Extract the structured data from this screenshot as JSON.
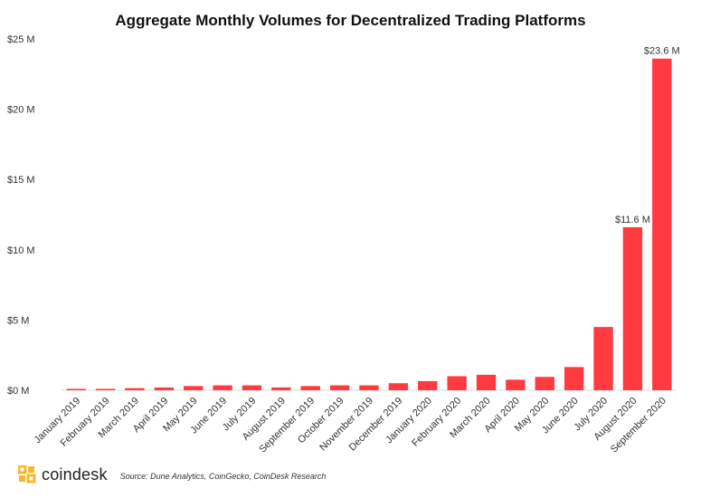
{
  "chart_data": {
    "type": "bar",
    "title": "Aggregate Monthly Volumes for Decentralized Trading Platforms",
    "xlabel": "",
    "ylabel": "",
    "ylim": [
      0,
      25
    ],
    "yticks": [
      0,
      5,
      10,
      15,
      20,
      25
    ],
    "ytick_labels": [
      "$0 M",
      "$5 M",
      "$10 M",
      "$15 M",
      "$20 M",
      "$25 M"
    ],
    "grid": false,
    "bar_color": "#ff3b3f",
    "categories": [
      "January 2019",
      "February 2019",
      "March 2019",
      "April 2019",
      "May 2019",
      "June 2019",
      "July 2019",
      "August 2019",
      "September 2019",
      "October 2019",
      "November 2019",
      "December 2019",
      "January 2020",
      "February 2020",
      "March 2020",
      "April 2020",
      "May 2020",
      "June 2020",
      "July 2020",
      "August 2020",
      "September 2020"
    ],
    "values": [
      0.1,
      0.1,
      0.15,
      0.2,
      0.3,
      0.35,
      0.35,
      0.2,
      0.3,
      0.35,
      0.35,
      0.5,
      0.65,
      1.0,
      1.1,
      0.75,
      0.95,
      1.65,
      4.5,
      11.6,
      23.6
    ],
    "data_labels": [
      {
        "index": 19,
        "text": "$11.6 M"
      },
      {
        "index": 20,
        "text": "$23.6 M"
      }
    ]
  },
  "footer": {
    "brand": "coindesk",
    "source": "Source: Dune Analytics, CoinGecko, CoinDesk Research"
  },
  "colors": {
    "accent": "#ff3b3f",
    "brand_gold": "#f5b82e"
  }
}
